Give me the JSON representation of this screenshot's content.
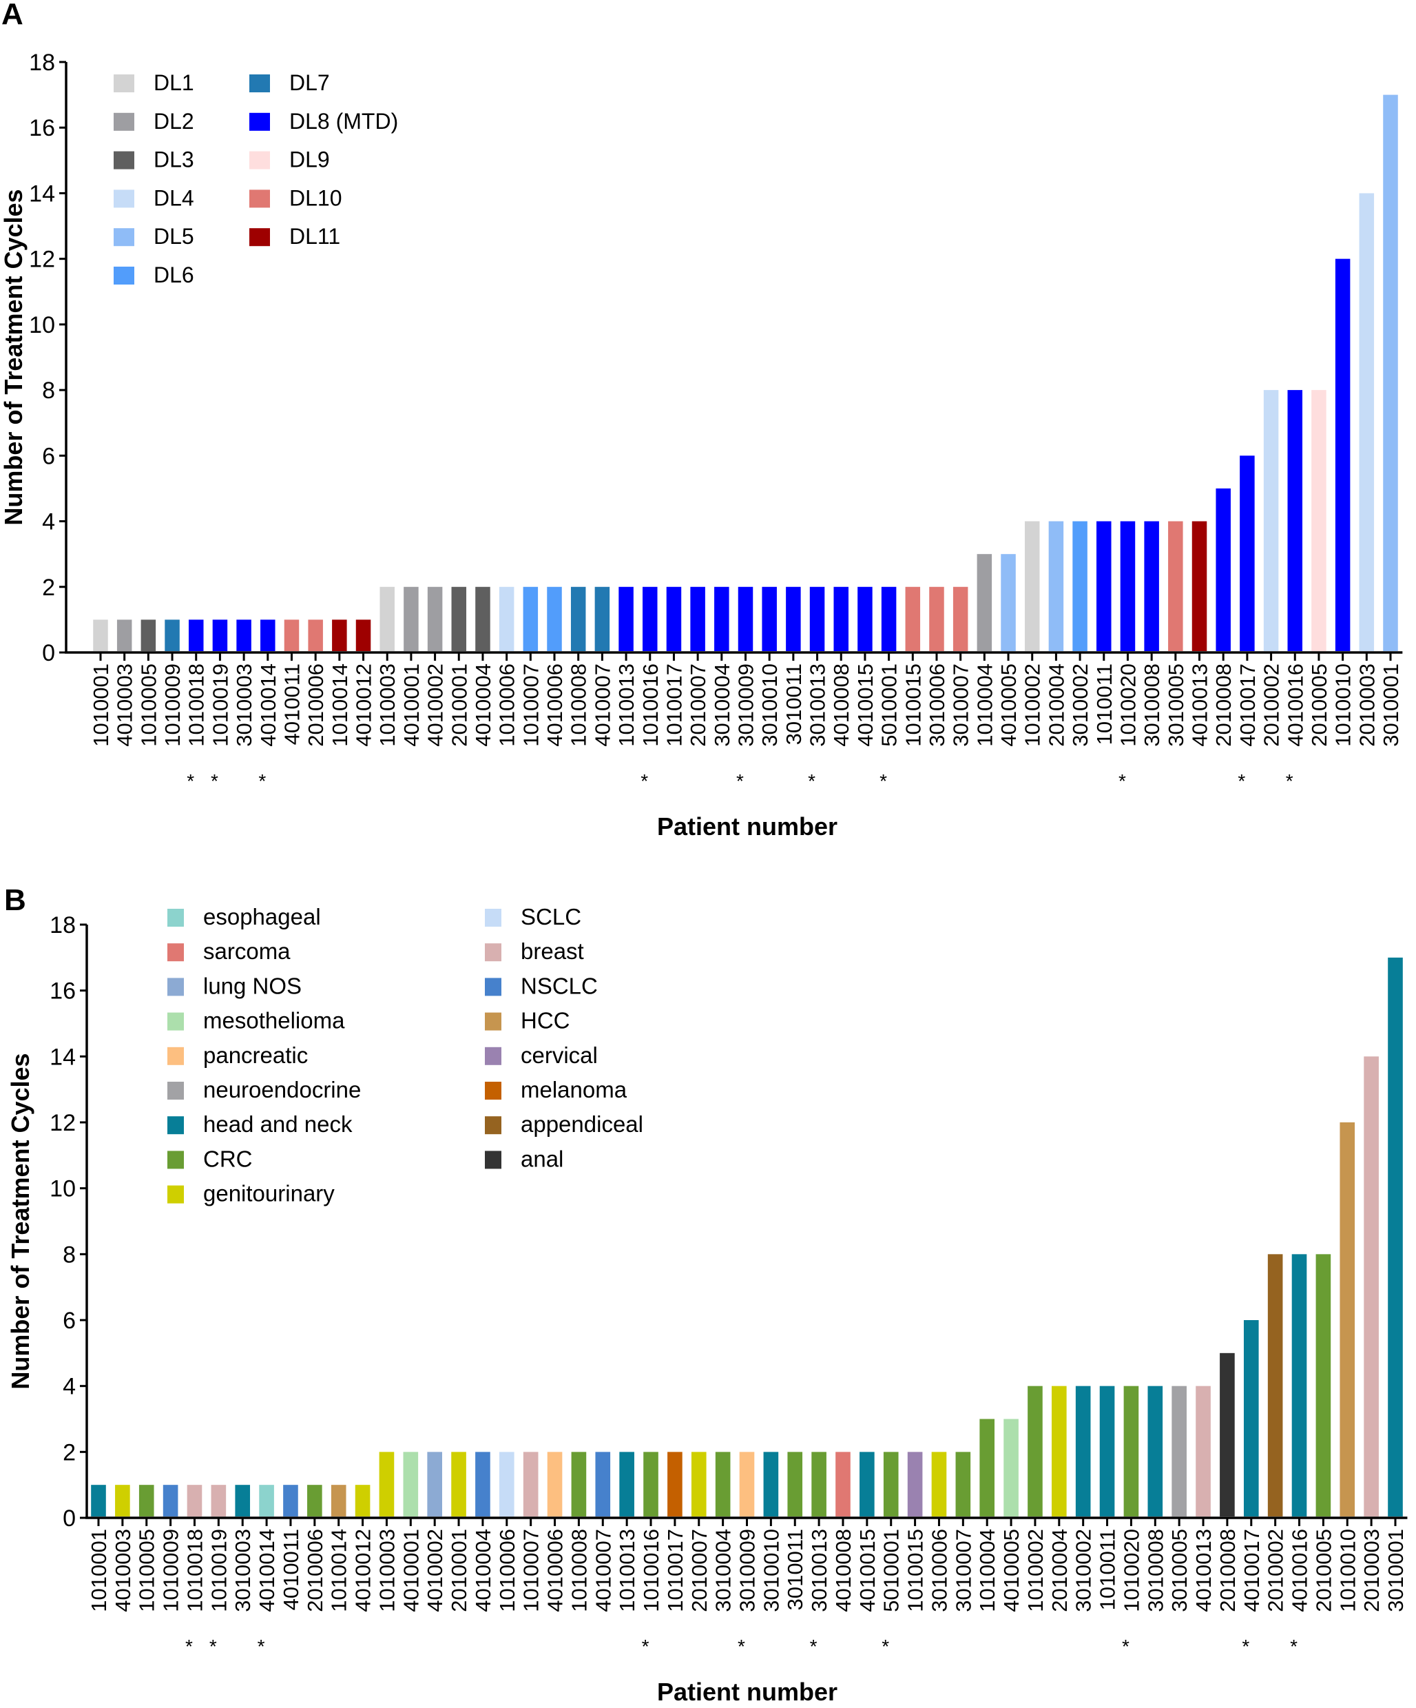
{
  "chart_data": [
    {
      "panel_label": "A",
      "type": "bar",
      "title": "",
      "xlabel": "Patient number",
      "ylabel": "Number of Treatment Cycles",
      "ylim": [
        0,
        18
      ],
      "yticks": [
        0,
        2,
        4,
        6,
        8,
        10,
        12,
        14,
        16,
        18
      ],
      "grid": false,
      "legend_position": "top-left",
      "legend": [
        {
          "label": "DL1",
          "color": "#d3d3d3"
        },
        {
          "label": "DL2",
          "color": "#9e9ea2"
        },
        {
          "label": "DL3",
          "color": "#5f5f5f"
        },
        {
          "label": "DL4",
          "color": "#c6dcf7"
        },
        {
          "label": "DL5",
          "color": "#8fbcf7"
        },
        {
          "label": "DL6",
          "color": "#529dfb"
        },
        {
          "label": "DL7",
          "color": "#2279b2"
        },
        {
          "label": "DL8 (MTD)",
          "color": "#0000ff"
        },
        {
          "label": "DL9",
          "color": "#fedede"
        },
        {
          "label": "DL10",
          "color": "#e07872"
        },
        {
          "label": "DL11",
          "color": "#9e0000"
        }
      ],
      "categories": [
        "1010001",
        "4010003",
        "1010005",
        "1010009",
        "1010018",
        "1010019",
        "3010003",
        "4010014",
        "4010011",
        "2010006",
        "1010014",
        "4010012",
        "1010003",
        "4010001",
        "4010002",
        "2010001",
        "4010004",
        "1010006",
        "1010007",
        "4010006",
        "1010008",
        "4010007",
        "1010013",
        "1010016",
        "1010017",
        "2010007",
        "3010004",
        "3010009",
        "3010010",
        "3010011",
        "3010013",
        "4010008",
        "4010015",
        "5010001",
        "1010015",
        "3010006",
        "3010007",
        "1010004",
        "4010005",
        "1010002",
        "2010004",
        "3010002",
        "1010011",
        "1010020",
        "3010008",
        "3010005",
        "4010013",
        "2010008",
        "4010017",
        "2010002",
        "4010016",
        "2010005",
        "1010010",
        "2010003",
        "3010001"
      ],
      "asterisk": [
        false,
        false,
        false,
        false,
        true,
        true,
        false,
        true,
        false,
        false,
        false,
        false,
        false,
        false,
        false,
        false,
        false,
        false,
        false,
        false,
        false,
        false,
        false,
        true,
        false,
        false,
        false,
        true,
        false,
        false,
        true,
        false,
        false,
        true,
        false,
        false,
        false,
        false,
        false,
        false,
        false,
        false,
        false,
        true,
        false,
        false,
        false,
        false,
        true,
        false,
        true,
        false,
        false,
        false,
        false
      ],
      "values": [
        1,
        1,
        1,
        1,
        1,
        1,
        1,
        1,
        1,
        1,
        1,
        1,
        2,
        2,
        2,
        2,
        2,
        2,
        2,
        2,
        2,
        2,
        2,
        2,
        2,
        2,
        2,
        2,
        2,
        2,
        2,
        2,
        2,
        2,
        2,
        2,
        2,
        3,
        3,
        4,
        4,
        4,
        4,
        4,
        4,
        4,
        4,
        5,
        6,
        8,
        8,
        8,
        12,
        14,
        17
      ],
      "groups": [
        "DL1",
        "DL2",
        "DL3",
        "DL7",
        "DL8 (MTD)",
        "DL8 (MTD)",
        "DL8 (MTD)",
        "DL8 (MTD)",
        "DL10",
        "DL10",
        "DL11",
        "DL11",
        "DL1",
        "DL2",
        "DL2",
        "DL3",
        "DL3",
        "DL4",
        "DL6",
        "DL6",
        "DL7",
        "DL7",
        "DL8 (MTD)",
        "DL8 (MTD)",
        "DL8 (MTD)",
        "DL8 (MTD)",
        "DL8 (MTD)",
        "DL8 (MTD)",
        "DL8 (MTD)",
        "DL8 (MTD)",
        "DL8 (MTD)",
        "DL8 (MTD)",
        "DL8 (MTD)",
        "DL8 (MTD)",
        "DL10",
        "DL10",
        "DL10",
        "DL2",
        "DL5",
        "DL1",
        "DL5",
        "DL6",
        "DL8 (MTD)",
        "DL8 (MTD)",
        "DL8 (MTD)",
        "DL10",
        "DL11",
        "DL8 (MTD)",
        "DL8 (MTD)",
        "DL4",
        "DL8 (MTD)",
        "DL9",
        "DL8 (MTD)",
        "DL4",
        "DL5"
      ]
    },
    {
      "panel_label": "B",
      "type": "bar",
      "title": "",
      "xlabel": "Patient number",
      "ylabel": "Number of Treatment Cycles",
      "ylim": [
        0,
        18
      ],
      "yticks": [
        0,
        2,
        4,
        6,
        8,
        10,
        12,
        14,
        16,
        18
      ],
      "grid": false,
      "legend_position": "top-left",
      "legend": [
        {
          "label": "esophageal",
          "color": "#8cd3cd"
        },
        {
          "label": "sarcoma",
          "color": "#e07872"
        },
        {
          "label": "lung NOS",
          "color": "#8caad3"
        },
        {
          "label": "mesothelioma",
          "color": "#acdfac"
        },
        {
          "label": "pancreatic",
          "color": "#fdbf80"
        },
        {
          "label": "neuroendocrine",
          "color": "#a2a2a5"
        },
        {
          "label": "head and neck",
          "color": "#077e97"
        },
        {
          "label": "CRC",
          "color": "#699d33"
        },
        {
          "label": "genitourinary",
          "color": "#cfcf00"
        },
        {
          "label": "SCLC",
          "color": "#c6dcf7"
        },
        {
          "label": "breast",
          "color": "#d8b0b0"
        },
        {
          "label": "NSCLC",
          "color": "#4681cc"
        },
        {
          "label": "HCC",
          "color": "#c6954f"
        },
        {
          "label": "cervical",
          "color": "#9a82b0"
        },
        {
          "label": "melanoma",
          "color": "#c46000"
        },
        {
          "label": "appendiceal",
          "color": "#956320"
        },
        {
          "label": "anal",
          "color": "#333333"
        }
      ],
      "categories": [
        "1010001",
        "4010003",
        "1010005",
        "1010009",
        "1010018",
        "1010019",
        "3010003",
        "4010014",
        "4010011",
        "2010006",
        "1010014",
        "4010012",
        "1010003",
        "4010001",
        "4010002",
        "2010001",
        "4010004",
        "1010006",
        "1010007",
        "4010006",
        "1010008",
        "4010007",
        "1010013",
        "1010016",
        "1010017",
        "2010007",
        "3010004",
        "3010009",
        "3010010",
        "3010011",
        "3010013",
        "4010008",
        "4010015",
        "5010001",
        "1010015",
        "3010006",
        "3010007",
        "1010004",
        "4010005",
        "1010002",
        "2010004",
        "3010002",
        "1010011",
        "1010020",
        "3010008",
        "3010005",
        "4010013",
        "2010008",
        "4010017",
        "2010002",
        "4010016",
        "2010005",
        "1010010",
        "2010003",
        "3010001"
      ],
      "asterisk": [
        false,
        false,
        false,
        false,
        true,
        true,
        false,
        true,
        false,
        false,
        false,
        false,
        false,
        false,
        false,
        false,
        false,
        false,
        false,
        false,
        false,
        false,
        false,
        true,
        false,
        false,
        false,
        true,
        false,
        false,
        true,
        false,
        false,
        true,
        false,
        false,
        false,
        false,
        false,
        false,
        false,
        false,
        false,
        true,
        false,
        false,
        false,
        false,
        true,
        false,
        true,
        false,
        false,
        false,
        false
      ],
      "values": [
        1,
        1,
        1,
        1,
        1,
        1,
        1,
        1,
        1,
        1,
        1,
        1,
        2,
        2,
        2,
        2,
        2,
        2,
        2,
        2,
        2,
        2,
        2,
        2,
        2,
        2,
        2,
        2,
        2,
        2,
        2,
        2,
        2,
        2,
        2,
        2,
        2,
        3,
        3,
        4,
        4,
        4,
        4,
        4,
        4,
        4,
        4,
        5,
        6,
        8,
        8,
        8,
        12,
        14,
        17
      ],
      "groups": [
        "head and neck",
        "genitourinary",
        "CRC",
        "NSCLC",
        "breast",
        "breast",
        "head and neck",
        "esophageal",
        "NSCLC",
        "CRC",
        "HCC",
        "genitourinary",
        "genitourinary",
        "mesothelioma",
        "lung NOS",
        "genitourinary",
        "NSCLC",
        "SCLC",
        "breast",
        "pancreatic",
        "CRC",
        "NSCLC",
        "head and neck",
        "CRC",
        "melanoma",
        "genitourinary",
        "CRC",
        "pancreatic",
        "head and neck",
        "CRC",
        "CRC",
        "sarcoma",
        "head and neck",
        "CRC",
        "cervical",
        "genitourinary",
        "CRC",
        "CRC",
        "mesothelioma",
        "CRC",
        "genitourinary",
        "head and neck",
        "head and neck",
        "CRC",
        "head and neck",
        "neuroendocrine",
        "breast",
        "anal",
        "head and neck",
        "appendiceal",
        "head and neck",
        "CRC",
        "HCC",
        "breast",
        "head and neck"
      ]
    }
  ]
}
